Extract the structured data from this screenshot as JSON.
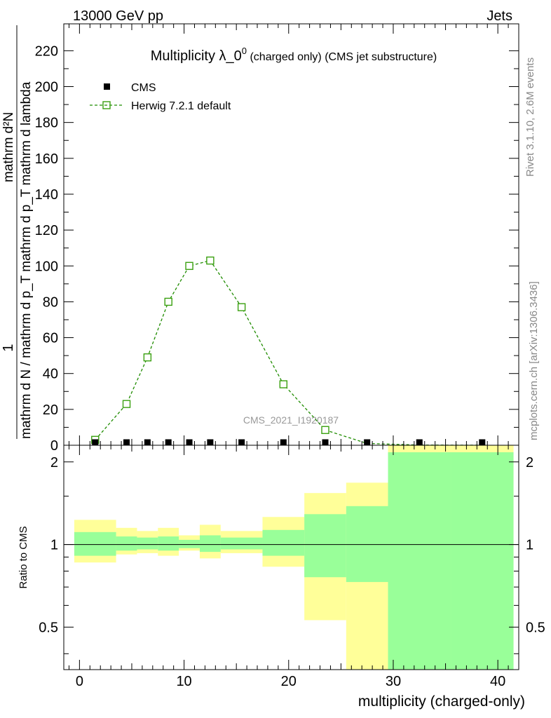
{
  "header": {
    "left": "13000 GeV pp",
    "right": "Jets"
  },
  "side": {
    "rivet": "Rivet 3.1.10,  2.6M events",
    "mcplots": "mcplots.cern.ch [arXiv:1306.3436]"
  },
  "watermark": "CMS_2021_I1920187",
  "chart_data": [
    {
      "type": "line",
      "title_main": "Multiplicity λ_0",
      "title_sup": "0",
      "title_suffix": " (charged only) (CMS jet substructure)",
      "ylabel_num": "1",
      "ylabel_den": "mathrm d N / mathrm d p_T mathrm d p_T mathrm d lambda",
      "ylabel_top": "mathrm d²N",
      "xlim": [
        -1.5,
        42
      ],
      "ylim": [
        0,
        235
      ],
      "yticks": [
        0,
        20,
        40,
        60,
        80,
        100,
        120,
        140,
        160,
        180,
        200,
        220
      ],
      "legend": [
        "CMS",
        "Herwig 7.2.1 default"
      ],
      "colors": {
        "data": "#000000",
        "mc": "#1f8c00",
        "mc_marker": "#3aa010"
      },
      "series": [
        {
          "name": "CMS",
          "x": [
            1.5,
            4.5,
            6.5,
            8.5,
            10.5,
            12.5,
            15.5,
            19.5,
            23.5,
            27.5,
            32.5,
            38.5
          ],
          "values": [
            0.1,
            0.2,
            0.3,
            0.3,
            0.4,
            0.3,
            0.3,
            0.2,
            0.2,
            0.1,
            0.05,
            0.02
          ]
        },
        {
          "name": "Herwig 7.2.1 default",
          "x": [
            1.5,
            4.5,
            6.5,
            8.5,
            10.5,
            12.5,
            15.5,
            19.5,
            23.5,
            27.5,
            32.5,
            38.5
          ],
          "values": [
            3,
            23,
            49,
            80,
            100,
            103,
            77,
            34,
            8.5,
            1,
            0.1,
            0.01
          ]
        }
      ]
    },
    {
      "type": "area",
      "ylabel": "Ratio to CMS",
      "xlabel": "multiplicity (charged-only)",
      "scale": "log",
      "ylim": [
        0.35,
        2.3
      ],
      "xticks": [
        0,
        10,
        20,
        30,
        40
      ],
      "ytick_labels": [
        "0.5",
        "1",
        "2"
      ],
      "ytick_values": [
        0.5,
        1,
        2
      ],
      "colors": {
        "inner": "#99ff99",
        "outer": "#ffff99",
        "line": "#000000"
      },
      "bins": [
        {
          "lo": -0.5,
          "hi": 3.5,
          "inner": [
            0.91,
            1.11
          ],
          "outer": [
            0.86,
            1.23
          ]
        },
        {
          "lo": 3.5,
          "hi": 5.5,
          "inner": [
            0.95,
            1.07
          ],
          "outer": [
            0.92,
            1.15
          ]
        },
        {
          "lo": 5.5,
          "hi": 7.5,
          "inner": [
            0.96,
            1.06
          ],
          "outer": [
            0.93,
            1.12
          ]
        },
        {
          "lo": 7.5,
          "hi": 9.5,
          "inner": [
            0.95,
            1.07
          ],
          "outer": [
            0.91,
            1.15
          ]
        },
        {
          "lo": 9.5,
          "hi": 11.5,
          "inner": [
            0.97,
            1.04
          ],
          "outer": [
            0.95,
            1.08
          ]
        },
        {
          "lo": 11.5,
          "hi": 13.5,
          "inner": [
            0.94,
            1.08
          ],
          "outer": [
            0.89,
            1.18
          ]
        },
        {
          "lo": 13.5,
          "hi": 17.5,
          "inner": [
            0.96,
            1.06
          ],
          "outer": [
            0.93,
            1.12
          ]
        },
        {
          "lo": 17.5,
          "hi": 21.5,
          "inner": [
            0.91,
            1.13
          ],
          "outer": [
            0.83,
            1.26
          ]
        },
        {
          "lo": 21.5,
          "hi": 25.5,
          "inner": [
            0.76,
            1.29
          ],
          "outer": [
            0.53,
            1.54
          ]
        },
        {
          "lo": 25.5,
          "hi": 29.5,
          "inner": [
            0.73,
            1.38
          ],
          "outer": [
            0.35,
            1.68
          ]
        },
        {
          "lo": 29.5,
          "hi": 35.5,
          "inner": [
            0.35,
            2.3
          ],
          "outer": [
            0.35,
            2.3
          ]
        },
        {
          "lo": 35.5,
          "hi": 41.5,
          "inner": [
            0.35,
            2.3
          ],
          "outer": [
            0.35,
            2.3
          ]
        }
      ]
    }
  ]
}
